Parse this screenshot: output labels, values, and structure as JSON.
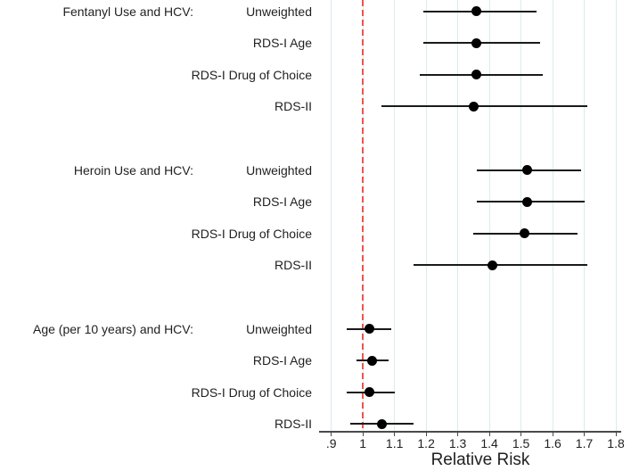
{
  "chart_data": {
    "type": "forest",
    "title": "",
    "xlabel": "Relative Risk",
    "x_ticks": [
      0.9,
      1.0,
      1.1,
      1.2,
      1.3,
      1.4,
      1.5,
      1.6,
      1.7,
      1.8
    ],
    "x_tick_labels": [
      ".9",
      "1",
      "1.1",
      "1.2",
      "1.3",
      "1.4",
      "1.5",
      "1.6",
      "1.7",
      "1.8"
    ],
    "xlim": [
      0.9,
      1.8
    ],
    "reference_line": 1.0,
    "grid": true,
    "legend": "none",
    "groups": [
      {
        "label": "Fentanyl Use and HCV:",
        "rows": [
          {
            "label": "Unweighted",
            "estimate": 1.36,
            "ci_low": 1.19,
            "ci_high": 1.55
          },
          {
            "label": "RDS-I Age",
            "estimate": 1.36,
            "ci_low": 1.19,
            "ci_high": 1.56
          },
          {
            "label": "RDS-I Drug of Choice",
            "estimate": 1.36,
            "ci_low": 1.18,
            "ci_high": 1.57
          },
          {
            "label": "RDS-II",
            "estimate": 1.35,
            "ci_low": 1.06,
            "ci_high": 1.71
          }
        ]
      },
      {
        "label": "Heroin Use and HCV:",
        "rows": [
          {
            "label": "Unweighted",
            "estimate": 1.52,
            "ci_low": 1.36,
            "ci_high": 1.69
          },
          {
            "label": "RDS-I Age",
            "estimate": 1.52,
            "ci_low": 1.36,
            "ci_high": 1.7
          },
          {
            "label": "RDS-I Drug of Choice",
            "estimate": 1.51,
            "ci_low": 1.35,
            "ci_high": 1.68
          },
          {
            "label": "RDS-II",
            "estimate": 1.41,
            "ci_low": 1.16,
            "ci_high": 1.71
          }
        ]
      },
      {
        "label": "Age (per 10 years) and HCV:",
        "rows": [
          {
            "label": "Unweighted",
            "estimate": 1.02,
            "ci_low": 0.95,
            "ci_high": 1.09
          },
          {
            "label": "RDS-I Age",
            "estimate": 1.03,
            "ci_low": 0.98,
            "ci_high": 1.08
          },
          {
            "label": "RDS-I Drug of Choice",
            "estimate": 1.02,
            "ci_low": 0.95,
            "ci_high": 1.1
          },
          {
            "label": "RDS-II",
            "estimate": 1.06,
            "ci_low": 0.96,
            "ci_high": 1.16
          }
        ]
      }
    ],
    "colors": {
      "marker": "#000000",
      "ci_line": "#1a1a1a",
      "reference_line": "#f0524a",
      "gridline": "#dcebee",
      "axis_line": "#4a4a4a",
      "text": "#1f1f1f",
      "background": "#ffffff"
    }
  }
}
